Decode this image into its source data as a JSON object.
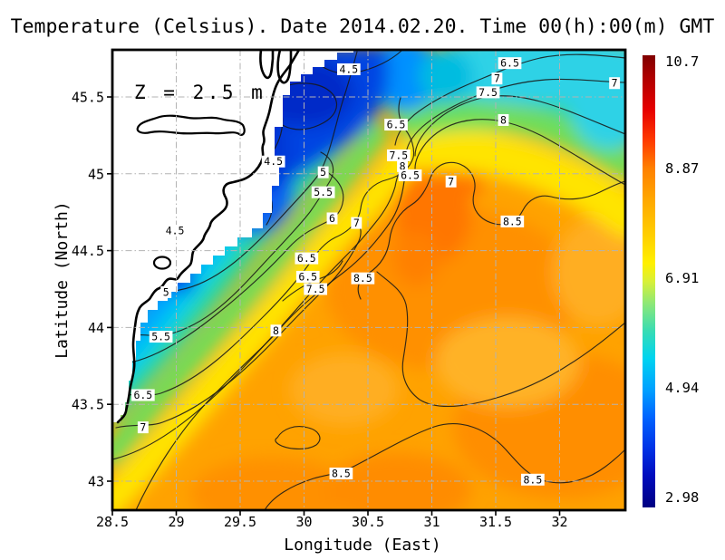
{
  "title": "Temperature (Celsius). Date 2014.02.20. Time 00(h):00(m) GMT",
  "annotation": "Z = 2.5 m",
  "axes": {
    "x_label": "Longitude (East)",
    "y_label": "Latitude (North)"
  },
  "chart_data": {
    "type": "heatmap",
    "subtype": "filled_contour_map",
    "title": "Temperature (Celsius). Date 2014.02.20. Time 00(h):00(m) GMT",
    "xlabel": "Longitude (East)",
    "ylabel": "Latitude (North)",
    "units": "Celsius",
    "depth": "Z = 2.5 m",
    "xlim": [
      28.5,
      32.51
    ],
    "ylim": [
      42.81,
      45.81
    ],
    "x_ticks": [
      28.5,
      29,
      29.5,
      30,
      30.5,
      31,
      31.5,
      32
    ],
    "y_ticks": [
      45.5,
      45,
      44.5,
      44,
      43.5,
      43
    ],
    "grid": "dash-dot gray, on",
    "legend_position": "right colorbar",
    "colormap": "jet",
    "colorbar": {
      "min": 2.98,
      "max": 10.7,
      "tick_labels": [
        "10.7",
        "8.87",
        "6.91",
        "4.94",
        "2.98"
      ],
      "tick_fracs_from_top": [
        0.014,
        0.25,
        0.493,
        0.735,
        0.978
      ],
      "colors": {
        "top": "#800000",
        "mid_warm": "#ff8000",
        "mid": "#b4f050",
        "mid_cool": "#00a0ff",
        "bottom": "#000082"
      }
    },
    "contour_levels_shown": [
      4.5,
      5,
      5.5,
      6,
      6.5,
      7,
      7.5,
      8,
      8.5
    ],
    "contour_labels": [
      {
        "lon": 30.35,
        "lat": 45.68,
        "value": "4.5"
      },
      {
        "lon": 31.61,
        "lat": 45.72,
        "value": "6.5"
      },
      {
        "lon": 31.51,
        "lat": 45.62,
        "value": "7"
      },
      {
        "lon": 31.44,
        "lat": 45.53,
        "value": "7.5"
      },
      {
        "lon": 32.43,
        "lat": 45.59,
        "value": "7"
      },
      {
        "lon": 31.56,
        "lat": 45.35,
        "value": "8"
      },
      {
        "lon": 30.72,
        "lat": 45.32,
        "value": "6.5"
      },
      {
        "lon": 29.76,
        "lat": 45.08,
        "value": "4.5"
      },
      {
        "lon": 30.15,
        "lat": 45.01,
        "value": "5"
      },
      {
        "lon": 30.15,
        "lat": 44.88,
        "value": "5.5"
      },
      {
        "lon": 30.22,
        "lat": 44.71,
        "value": "6"
      },
      {
        "lon": 30.41,
        "lat": 44.68,
        "value": "7"
      },
      {
        "lon": 30.74,
        "lat": 45.12,
        "value": "7.5"
      },
      {
        "lon": 30.77,
        "lat": 45.05,
        "value": "8"
      },
      {
        "lon": 30.83,
        "lat": 44.99,
        "value": "6.5"
      },
      {
        "lon": 31.15,
        "lat": 44.95,
        "value": "7"
      },
      {
        "lon": 31.63,
        "lat": 44.69,
        "value": "8.5"
      },
      {
        "lon": 28.99,
        "lat": 44.63,
        "value": "4.5"
      },
      {
        "lon": 30.02,
        "lat": 44.45,
        "value": "6.5"
      },
      {
        "lon": 30.03,
        "lat": 44.33,
        "value": "6.5"
      },
      {
        "lon": 30.09,
        "lat": 44.25,
        "value": "7.5"
      },
      {
        "lon": 30.46,
        "lat": 44.32,
        "value": "8.5"
      },
      {
        "lon": 28.92,
        "lat": 44.23,
        "value": "5"
      },
      {
        "lon": 28.88,
        "lat": 43.94,
        "value": "5.5"
      },
      {
        "lon": 29.78,
        "lat": 43.98,
        "value": "8"
      },
      {
        "lon": 28.74,
        "lat": 43.56,
        "value": "6.5"
      },
      {
        "lon": 28.74,
        "lat": 43.35,
        "value": "7"
      },
      {
        "lon": 30.29,
        "lat": 43.05,
        "value": "8.5"
      },
      {
        "lon": 31.79,
        "lat": 43.01,
        "value": "8.5"
      }
    ],
    "description": "Sea temperature at 2.5 m depth, western Black Sea: cold water (3-5 C) along the northwest coast and river delta, warm water (8.5-9 C) offshore southeast."
  }
}
